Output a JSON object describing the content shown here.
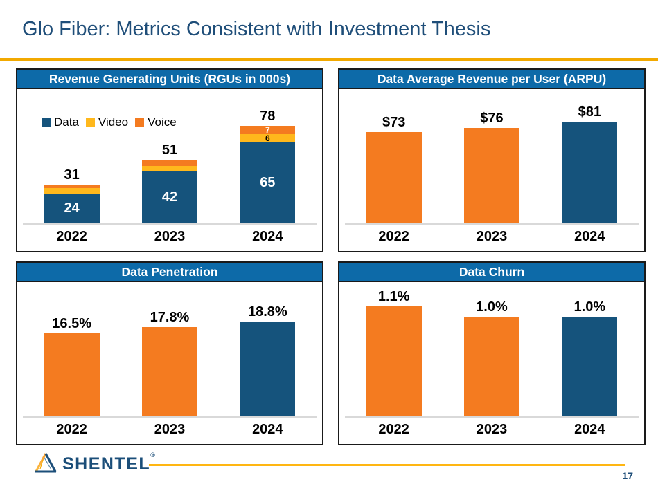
{
  "page": {
    "title": "Glo Fiber: Metrics Consistent with Investment Thesis",
    "page_number": "17",
    "brand": "SHENTEL",
    "brand_reg": "®"
  },
  "colors": {
    "title_text": "#1F4E79",
    "panel_header_blue": "#0D6AA8",
    "bar_navy": "#15537C",
    "bar_orange": "#F47B20",
    "bar_yellow": "#FFB81C",
    "gold_rule": "#F2A900",
    "footer_gold": "#FFB612"
  },
  "chart_data": [
    {
      "id": "rgu",
      "type": "stacked-bar",
      "title": "Revenue Generating Units (RGUs in 000s)",
      "categories": [
        "2022",
        "2023",
        "2024"
      ],
      "series": [
        {
          "name": "Data",
          "color": "#15537C",
          "values": [
            24,
            42,
            65
          ],
          "labels": [
            "24",
            "42",
            "65"
          ],
          "label_color": "#FFFFFF"
        },
        {
          "name": "Video",
          "color": "#FFB81C",
          "values": [
            4,
            4,
            6
          ],
          "labels": [
            "",
            "",
            "6"
          ],
          "label_color": "#000000"
        },
        {
          "name": "Voice",
          "color": "#F47B20",
          "values": [
            3,
            5,
            7
          ],
          "labels": [
            "",
            "",
            "7"
          ],
          "label_color": "#FFFFFF"
        }
      ],
      "totals": [
        "31",
        "51",
        "78"
      ],
      "legend": [
        "Data",
        "Video",
        "Voice"
      ],
      "legend_position": "top-left",
      "grid": false,
      "ylim": [
        0,
        107
      ]
    },
    {
      "id": "arpu",
      "type": "bar",
      "title": "Data Average Revenue per User (ARPU)",
      "categories": [
        "2022",
        "2023",
        "2024"
      ],
      "values": [
        73,
        76,
        81
      ],
      "labels": [
        "$73",
        "$76",
        "$81"
      ],
      "bar_colors": [
        "#F47B20",
        "#F47B20",
        "#15537C"
      ],
      "grid": false,
      "ylim": [
        0,
        107
      ]
    },
    {
      "id": "penetration",
      "type": "bar",
      "title": "Data Penetration",
      "categories": [
        "2022",
        "2023",
        "2024"
      ],
      "values": [
        16.5,
        17.8,
        18.8
      ],
      "labels": [
        "16.5%",
        "17.8%",
        "18.8%"
      ],
      "bar_colors": [
        "#F47B20",
        "#F47B20",
        "#15537C"
      ],
      "grid": false,
      "ylim": [
        0,
        26.7
      ]
    },
    {
      "id": "churn",
      "type": "bar",
      "title": "Data Churn",
      "categories": [
        "2022",
        "2023",
        "2024"
      ],
      "values": [
        1.1,
        1.0,
        1.0
      ],
      "labels": [
        "1.1%",
        "1.0%",
        "1.0%"
      ],
      "bar_colors": [
        "#F47B20",
        "#F47B20",
        "#15537C"
      ],
      "grid": false,
      "ylim": [
        0,
        1.345
      ]
    }
  ]
}
